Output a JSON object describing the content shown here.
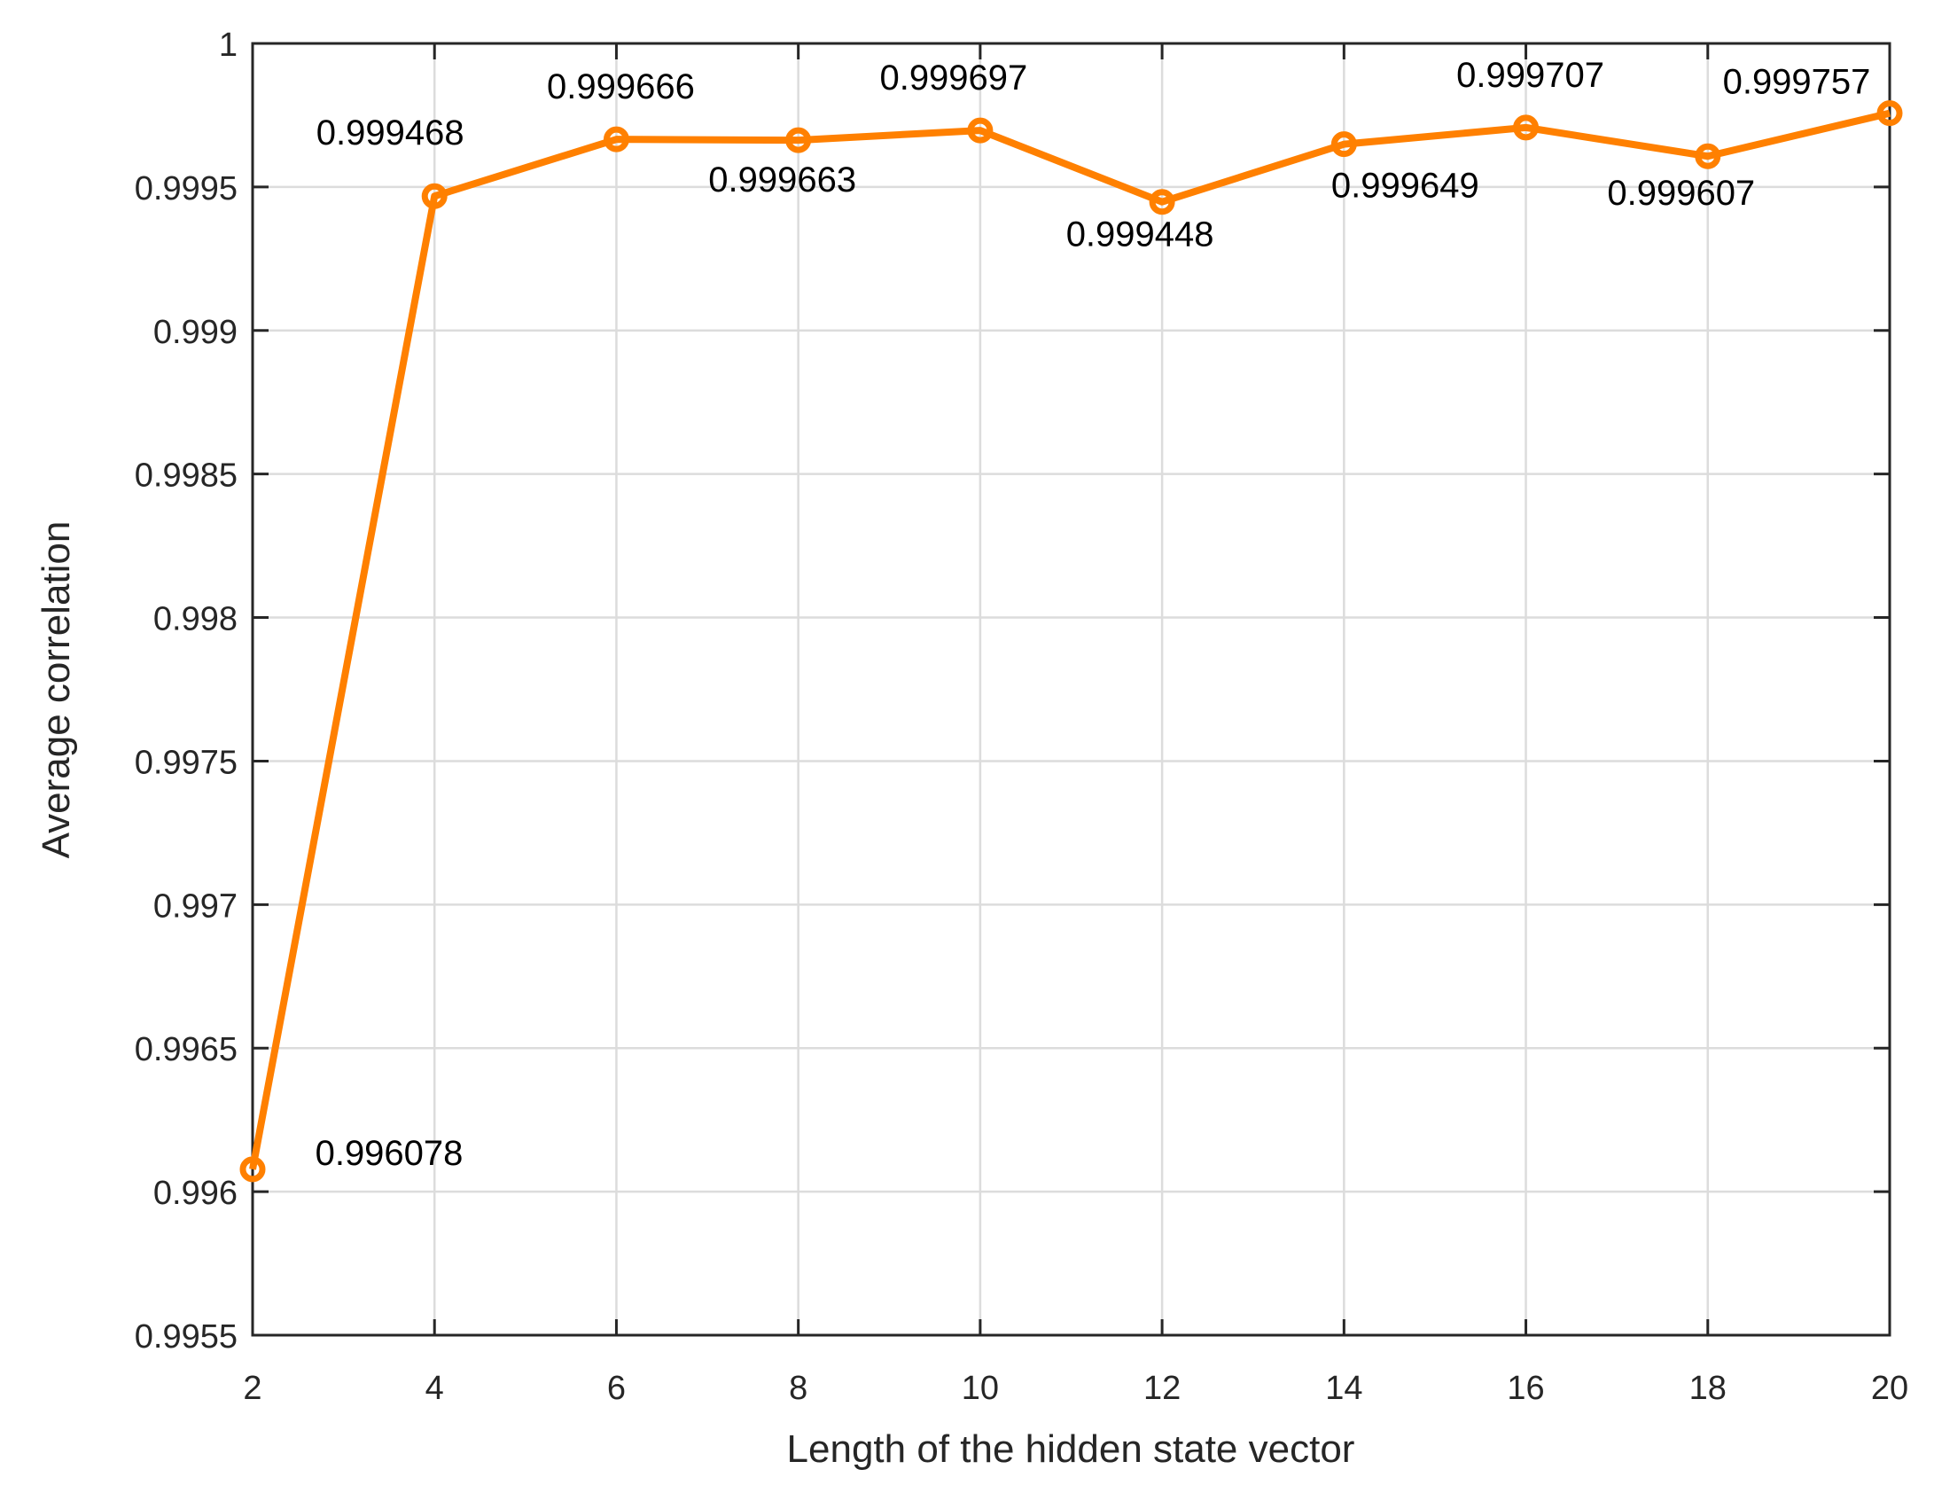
{
  "chart_data": {
    "type": "line",
    "title": "",
    "xlabel": "Length of the hidden state vector",
    "ylabel": "Average correlation",
    "x": [
      2,
      4,
      6,
      8,
      10,
      12,
      14,
      16,
      18,
      20
    ],
    "series": [
      {
        "name": "Average correlation",
        "color": "#FF8000",
        "marker": "circle",
        "values": [
          0.996078,
          0.999468,
          0.999666,
          0.999663,
          0.999697,
          0.999448,
          0.999649,
          0.999707,
          0.999607,
          0.999757
        ]
      }
    ],
    "data_labels": [
      "0.996078",
      "0.999468",
      "0.999666",
      "0.999663",
      "0.999697",
      "0.999448",
      "0.999649",
      "0.999707",
      "0.999607",
      "0.999757"
    ],
    "xlim": [
      2,
      20
    ],
    "ylim": [
      0.9955,
      1
    ],
    "xticks": [
      "2",
      "4",
      "6",
      "8",
      "10",
      "12",
      "14",
      "16",
      "18",
      "20"
    ],
    "yticks": [
      "0.9955",
      "0.996",
      "0.9965",
      "0.997",
      "0.9975",
      "0.998",
      "0.9985",
      "0.999",
      "0.9995",
      "1"
    ],
    "grid": true,
    "legend": null
  }
}
